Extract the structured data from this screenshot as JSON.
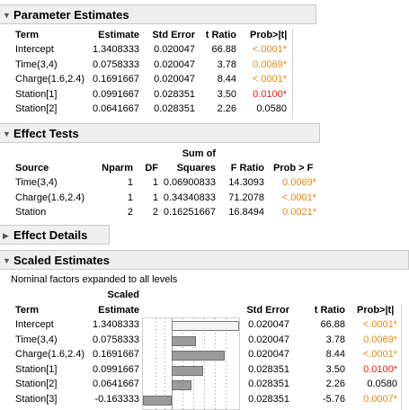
{
  "sections": {
    "parameter_estimates": "Parameter Estimates",
    "effect_tests": "Effect Tests",
    "effect_details": "Effect Details",
    "scaled_estimates": "Scaled Estimates"
  },
  "pe": {
    "headers": [
      "Term",
      "Estimate",
      "Std Error",
      "t Ratio",
      "Prob>|t|"
    ],
    "rows": [
      {
        "term": "Intercept",
        "estimate": "1.3408333",
        "se": "0.020047",
        "t": "66.88",
        "p": "<.0001*",
        "pcolor": "orange"
      },
      {
        "term": "Time(3,4)",
        "estimate": "0.0758333",
        "se": "0.020047",
        "t": "3.78",
        "p": "0.0069*",
        "pcolor": "orange"
      },
      {
        "term": "Charge(1.6,2.4)",
        "estimate": "0.1691667",
        "se": "0.020047",
        "t": "8.44",
        "p": "<.0001*",
        "pcolor": "orange"
      },
      {
        "term": "Station[1]",
        "estimate": "0.0991667",
        "se": "0.028351",
        "t": "3.50",
        "p": "0.0100*",
        "pcolor": "red"
      },
      {
        "term": "Station[2]",
        "estimate": "0.0641667",
        "se": "0.028351",
        "t": "2.26",
        "p": "0.0580",
        "pcolor": "black"
      }
    ]
  },
  "et": {
    "headers": {
      "source": "Source",
      "nparm": "Nparm",
      "df": "DF",
      "ss_top": "Sum of",
      "ss_bottom": "Squares",
      "f": "F Ratio",
      "p": "Prob > F"
    },
    "rows": [
      {
        "source": "Time(3,4)",
        "nparm": "1",
        "df": "1",
        "ss": "0.06900833",
        "f": "14.3093",
        "p": "0.0069*",
        "pcolor": "orange"
      },
      {
        "source": "Charge(1.6,2.4)",
        "nparm": "1",
        "df": "1",
        "ss": "0.34340833",
        "f": "71.2078",
        "p": "<.0001*",
        "pcolor": "orange"
      },
      {
        "source": "Station",
        "nparm": "2",
        "df": "2",
        "ss": "0.16251667",
        "f": "16.8494",
        "p": "0.0021*",
        "pcolor": "orange"
      }
    ]
  },
  "se": {
    "note": "Nominal factors expanded to all levels",
    "headers": {
      "term": "Term",
      "est_top": "Scaled",
      "est_bottom": "Estimate",
      "se": "Std Error",
      "t": "t Ratio",
      "p": "Prob>|t|"
    },
    "rows": [
      {
        "term": "Intercept",
        "estimate": "1.3408333",
        "se": "0.020047",
        "t": "66.88",
        "p": "<.0001*",
        "pcolor": "orange",
        "bar": 1.3408333
      },
      {
        "term": "Time(3,4)",
        "estimate": "0.0758333",
        "se": "0.020047",
        "t": "3.78",
        "p": "0.0069*",
        "pcolor": "orange",
        "bar": 0.0758333
      },
      {
        "term": "Charge(1.6,2.4)",
        "estimate": "0.1691667",
        "se": "0.020047",
        "t": "8.44",
        "p": "<.0001*",
        "pcolor": "orange",
        "bar": 0.1691667
      },
      {
        "term": "Station[1]",
        "estimate": "0.0991667",
        "se": "0.028351",
        "t": "3.50",
        "p": "0.0100*",
        "pcolor": "red",
        "bar": 0.0991667
      },
      {
        "term": "Station[2]",
        "estimate": "0.0641667",
        "se": "0.028351",
        "t": "2.26",
        "p": "0.0580",
        "pcolor": "black",
        "bar": 0.0641667
      },
      {
        "term": "Station[3]",
        "estimate": "-0.163333",
        "se": "0.028351",
        "t": "-5.76",
        "p": "0.0007*",
        "pcolor": "orange",
        "bar": -0.163333
      }
    ]
  }
}
